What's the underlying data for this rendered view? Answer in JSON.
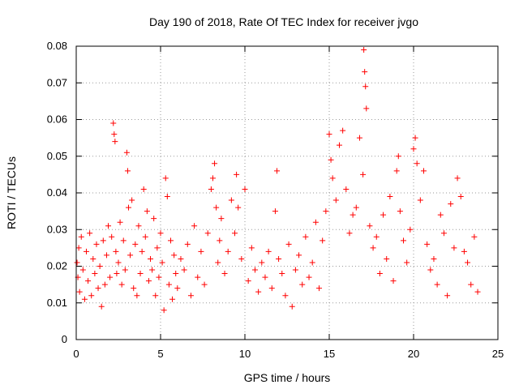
{
  "chart_data": {
    "type": "scatter",
    "title": "Day 190 of 2018, Rate Of TEC Index for receiver jvgo",
    "xlabel": "GPS time / hours",
    "ylabel": "ROTI / TECUs",
    "xlim": [
      0,
      25
    ],
    "ylim": [
      0,
      0.08
    ],
    "x_ticks": [
      0,
      5,
      10,
      15,
      20,
      25
    ],
    "y_ticks": [
      0,
      0.01,
      0.02,
      0.03,
      0.04,
      0.05,
      0.06,
      0.07,
      0.08
    ],
    "x_tick_labels": [
      "0",
      "5",
      "10",
      "15",
      "20",
      "25"
    ],
    "y_tick_labels": [
      "0",
      "0.01",
      "0.02",
      "0.03",
      "0.04",
      "0.05",
      "0.06",
      "0.07",
      "0.08"
    ],
    "grid": true,
    "marker": "plus",
    "series_color": "#ff0000",
    "series": [
      {
        "x": [
          0.05,
          0.1,
          0.15,
          0.2,
          0.3,
          0.4,
          0.5,
          0.6,
          0.7,
          0.8,
          0.9,
          1.0,
          1.1,
          1.2,
          1.3,
          1.4,
          1.5,
          1.6,
          1.7,
          1.8,
          1.9,
          2.0,
          2.1,
          2.2,
          2.25,
          2.3,
          2.35,
          2.4,
          2.5,
          2.6,
          2.7,
          2.8,
          2.9,
          3.0,
          3.05,
          3.1,
          3.2,
          3.3,
          3.4,
          3.5,
          3.6,
          3.7,
          3.8,
          3.9,
          4.0,
          4.1,
          4.2,
          4.3,
          4.4,
          4.5,
          4.6,
          4.7,
          4.8,
          4.9,
          5.0,
          5.1,
          5.2,
          5.3,
          5.4,
          5.5,
          5.6,
          5.7,
          5.8,
          5.9,
          6.0,
          6.2,
          6.4,
          6.6,
          6.8,
          7.0,
          7.2,
          7.4,
          7.6,
          7.8,
          8.0,
          8.1,
          8.2,
          8.3,
          8.4,
          8.5,
          8.6,
          8.8,
          9.0,
          9.2,
          9.4,
          9.5,
          9.6,
          9.8,
          10.0,
          10.2,
          10.4,
          10.6,
          10.8,
          11.0,
          11.2,
          11.4,
          11.6,
          11.8,
          11.9,
          12.0,
          12.2,
          12.4,
          12.6,
          12.8,
          13.0,
          13.2,
          13.4,
          13.6,
          13.8,
          14.0,
          14.2,
          14.4,
          14.6,
          14.8,
          15.0,
          15.1,
          15.2,
          15.4,
          15.6,
          15.8,
          16.0,
          16.2,
          16.4,
          16.6,
          16.8,
          17.0,
          17.05,
          17.1,
          17.15,
          17.2,
          17.4,
          17.6,
          17.8,
          18.0,
          18.2,
          18.4,
          18.6,
          18.8,
          19.0,
          19.1,
          19.2,
          19.4,
          19.6,
          19.8,
          20.0,
          20.1,
          20.2,
          20.4,
          20.6,
          20.8,
          21.0,
          21.2,
          21.4,
          21.6,
          21.8,
          22.0,
          22.2,
          22.4,
          22.6,
          22.8,
          23.0,
          23.2,
          23.4,
          23.6,
          23.8
        ],
        "y": [
          0.021,
          0.017,
          0.025,
          0.013,
          0.028,
          0.019,
          0.011,
          0.024,
          0.016,
          0.029,
          0.012,
          0.022,
          0.018,
          0.026,
          0.014,
          0.02,
          0.009,
          0.027,
          0.015,
          0.023,
          0.031,
          0.017,
          0.028,
          0.059,
          0.056,
          0.054,
          0.024,
          0.018,
          0.021,
          0.032,
          0.015,
          0.027,
          0.019,
          0.051,
          0.046,
          0.036,
          0.023,
          0.038,
          0.014,
          0.026,
          0.012,
          0.031,
          0.018,
          0.024,
          0.041,
          0.028,
          0.035,
          0.016,
          0.022,
          0.019,
          0.033,
          0.012,
          0.025,
          0.017,
          0.029,
          0.021,
          0.008,
          0.044,
          0.039,
          0.015,
          0.027,
          0.011,
          0.023,
          0.018,
          0.014,
          0.022,
          0.019,
          0.026,
          0.012,
          0.031,
          0.017,
          0.024,
          0.015,
          0.029,
          0.041,
          0.044,
          0.048,
          0.036,
          0.021,
          0.027,
          0.033,
          0.018,
          0.024,
          0.038,
          0.029,
          0.045,
          0.036,
          0.022,
          0.041,
          0.016,
          0.025,
          0.019,
          0.013,
          0.021,
          0.017,
          0.024,
          0.014,
          0.035,
          0.046,
          0.022,
          0.018,
          0.012,
          0.026,
          0.009,
          0.019,
          0.023,
          0.015,
          0.028,
          0.017,
          0.021,
          0.032,
          0.014,
          0.027,
          0.035,
          0.056,
          0.049,
          0.044,
          0.038,
          0.053,
          0.057,
          0.041,
          0.029,
          0.034,
          0.036,
          0.055,
          0.045,
          0.079,
          0.073,
          0.069,
          0.063,
          0.031,
          0.025,
          0.028,
          0.018,
          0.034,
          0.022,
          0.039,
          0.016,
          0.046,
          0.05,
          0.035,
          0.027,
          0.021,
          0.03,
          0.052,
          0.055,
          0.048,
          0.038,
          0.046,
          0.026,
          0.019,
          0.022,
          0.015,
          0.034,
          0.029,
          0.012,
          0.037,
          0.025,
          0.044,
          0.039,
          0.024,
          0.021,
          0.015,
          0.028,
          0.013
        ]
      }
    ]
  }
}
